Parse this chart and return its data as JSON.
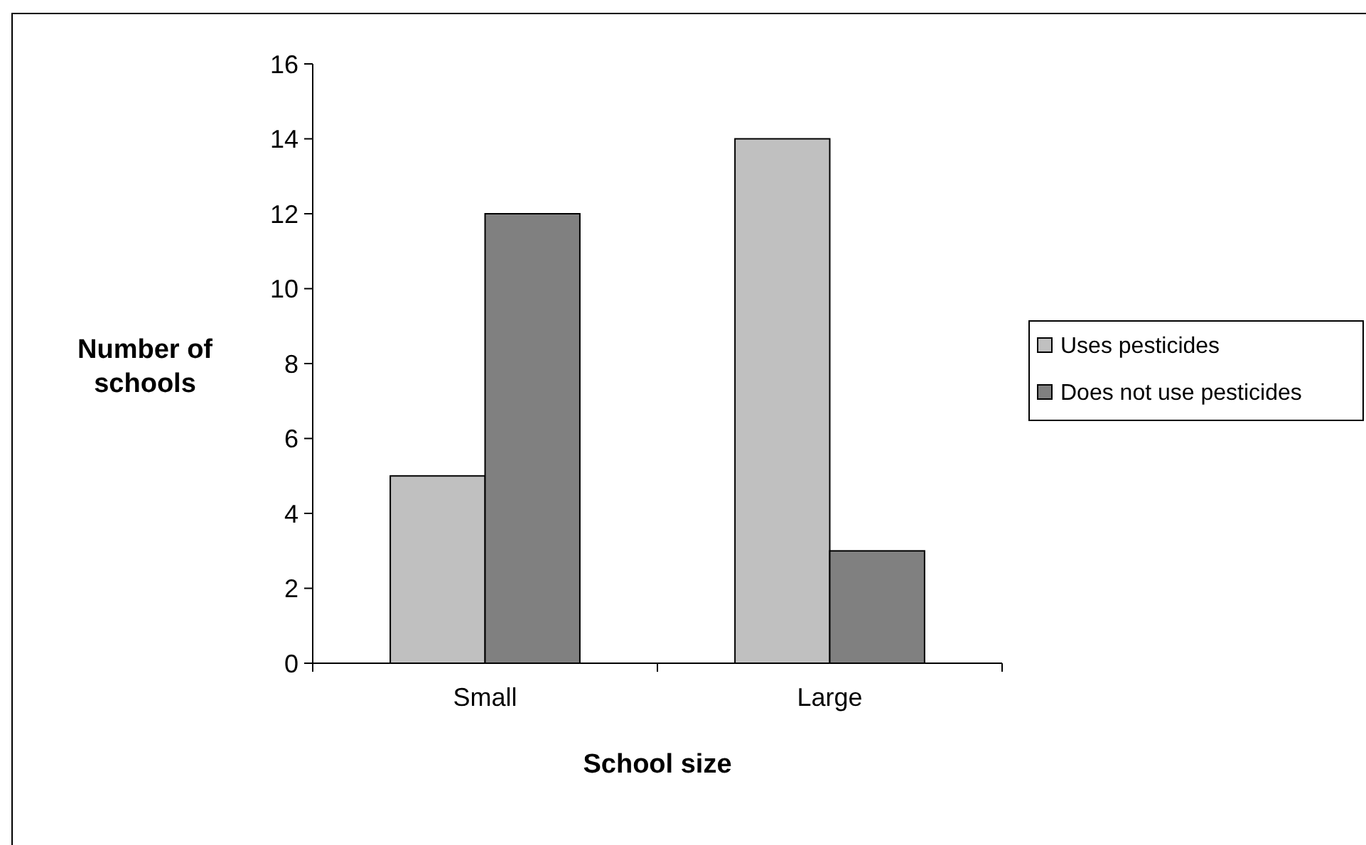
{
  "chart_data": {
    "type": "bar",
    "xlabel": "School size",
    "ylabel": "Number of schools",
    "categories": [
      "Small",
      "Large"
    ],
    "series": [
      {
        "name": "Uses pesticides",
        "color": "#c0c0c0",
        "values": [
          5,
          14
        ]
      },
      {
        "name": "Does not use pesticides",
        "color": "#808080",
        "values": [
          12,
          3
        ]
      }
    ],
    "ylim": [
      0,
      16
    ],
    "yticks": [
      0,
      2,
      4,
      6,
      8,
      10,
      12,
      14,
      16
    ],
    "grid": false,
    "legend": "right"
  }
}
